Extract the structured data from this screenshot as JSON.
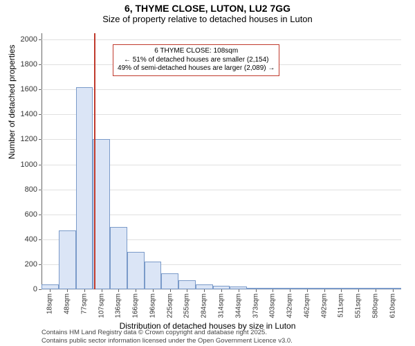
{
  "title": {
    "main": "6, THYME CLOSE, LUTON, LU2 7GG",
    "sub": "Size of property relative to detached houses in Luton"
  },
  "axes": {
    "ylabel": "Number of detached properties",
    "xlabel": "Distribution of detached houses by size in Luton",
    "ymin": 0,
    "ymax": 2050,
    "yticks": [
      0,
      200,
      400,
      600,
      800,
      1000,
      1200,
      1400,
      1600,
      1800,
      2000
    ],
    "grid_color": "#e0e0e0",
    "axis_color": "#666666",
    "label_fontsize": 12,
    "tick_fontsize": 11
  },
  "bars": {
    "fill": "#dbe5f6",
    "stroke": "#7a9ac9",
    "stroke_width": 1,
    "width_ratio": 1.0,
    "categories": [
      "18sqm",
      "48sqm",
      "77sqm",
      "107sqm",
      "136sqm",
      "166sqm",
      "196sqm",
      "225sqm",
      "255sqm",
      "284sqm",
      "314sqm",
      "344sqm",
      "373sqm",
      "403sqm",
      "432sqm",
      "462sqm",
      "492sqm",
      "511sqm",
      "551sqm",
      "580sqm",
      "610sqm"
    ],
    "values": [
      40,
      470,
      1620,
      1200,
      500,
      300,
      220,
      130,
      70,
      40,
      30,
      20,
      10,
      8,
      6,
      4,
      3,
      2,
      2,
      2,
      1
    ]
  },
  "marker": {
    "x_category": "107sqm",
    "x_offset_ratio": 0.05,
    "color": "#c0392b"
  },
  "callout": {
    "border_color": "#c0392b",
    "lines": [
      "6 THYME CLOSE: 108sqm",
      "← 51% of detached houses are smaller (2,154)",
      "49% of semi-detached houses are larger (2,089) →"
    ]
  },
  "footer": {
    "line1": "Contains HM Land Registry data © Crown copyright and database right 2025.",
    "line2": "Contains public sector information licensed under the Open Government Licence v3.0."
  }
}
